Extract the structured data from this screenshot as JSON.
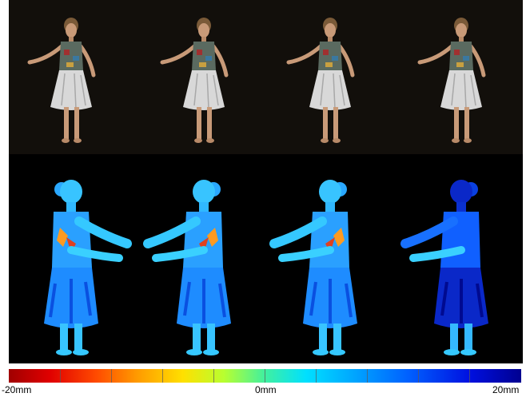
{
  "colorbar": {
    "min_label": "-20mm",
    "mid_label": "0mm",
    "max_label": "20mm",
    "colors": [
      "#a00000",
      "#ff4a00",
      "#ffe000",
      "#40f0a0",
      "#00e0ff",
      "#0060ff",
      "#000090"
    ]
  },
  "photos": {
    "count": 4,
    "colors": {
      "background": "#120f0b",
      "skin": "#c89a78",
      "hair": "#7a5a38",
      "top": "#5a6a60",
      "skirt": "#d8d8d8"
    }
  },
  "renders": {
    "count": 4,
    "colors": {
      "background": "#000000",
      "light": "#35c8ff",
      "medium": "#1e8cff",
      "dark": "#0a28c8"
    }
  }
}
